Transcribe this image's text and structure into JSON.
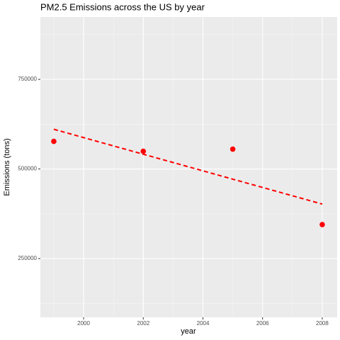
{
  "chart_data": {
    "type": "scatter",
    "title": "PM2.5 Emissions across the US by year",
    "x_label": "year",
    "y_label": "Emissions (tons)",
    "x": [
      1999,
      2002,
      2005,
      2008
    ],
    "values": [
      577000,
      549400,
      555300,
      344900
    ],
    "color": "#ff0000",
    "trend": {
      "x": [
        1999,
        2008
      ],
      "values": [
        610700,
        402000
      ],
      "color": "#ff0000",
      "dashed": true
    },
    "xlim": [
      1998.55,
      2008.5
    ],
    "ylim": [
      86000,
      924000
    ],
    "xticks": [
      2000,
      2002,
      2004,
      2006,
      2008
    ],
    "yticks": [
      250000,
      500000,
      750000
    ],
    "xminor": [
      1999,
      2001,
      2003,
      2005,
      2007
    ],
    "yminor": [
      125000,
      375000,
      625000,
      875000
    ],
    "grid": true
  }
}
